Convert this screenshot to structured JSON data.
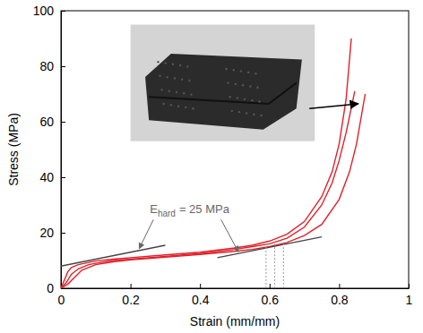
{
  "chart_data": {
    "type": "line",
    "x_label": "Strain (mm/mm)",
    "y_label": "Stress (MPa)",
    "xlim": [
      0,
      1
    ],
    "ylim": [
      0,
      100
    ],
    "xticks": [
      0,
      0.2,
      0.4,
      0.6,
      0.8,
      1
    ],
    "yticks": [
      0,
      20,
      40,
      60,
      80,
      100
    ],
    "grid": false,
    "series": [
      {
        "color": "#e0202a",
        "line_style": "solid",
        "x": [
          0,
          0.01,
          0.02,
          0.03,
          0.05,
          0.08,
          0.1,
          0.15,
          0.2,
          0.3,
          0.4,
          0.5,
          0.55,
          0.6,
          0.65,
          0.7,
          0.75,
          0.78,
          0.8,
          0.82,
          0.835
        ],
        "values": [
          0,
          3,
          6,
          7.5,
          8.5,
          9.3,
          9.8,
          10.5,
          11,
          12,
          13,
          14.5,
          15.5,
          17,
          19.5,
          24,
          33,
          42,
          52,
          68,
          90
        ]
      },
      {
        "color": "#e0202a",
        "line_style": "solid",
        "x": [
          0,
          0.015,
          0.03,
          0.05,
          0.08,
          0.1,
          0.15,
          0.2,
          0.3,
          0.4,
          0.5,
          0.55,
          0.6,
          0.65,
          0.7,
          0.75,
          0.78,
          0.8,
          0.82,
          0.845
        ],
        "values": [
          0,
          2,
          5,
          7,
          8.5,
          9,
          10,
          10.5,
          11.5,
          12.5,
          14,
          15,
          16,
          18,
          22,
          30,
          38,
          46,
          56,
          71
        ]
      },
      {
        "color": "#e0202a",
        "line_style": "solid",
        "x": [
          0,
          0.02,
          0.04,
          0.06,
          0.1,
          0.15,
          0.2,
          0.3,
          0.4,
          0.5,
          0.55,
          0.6,
          0.65,
          0.7,
          0.75,
          0.8,
          0.83,
          0.85,
          0.875
        ],
        "values": [
          0,
          1.5,
          4,
          6.5,
          8.5,
          9.5,
          10.2,
          11.2,
          12.2,
          13.3,
          14,
          15,
          16.5,
          19,
          23,
          32,
          42,
          52,
          70
        ]
      },
      {
        "color": "#444444",
        "line_style": "solid",
        "x": [
          0,
          0.3
        ],
        "values": [
          8,
          15.5
        ]
      },
      {
        "color": "#444444",
        "line_style": "solid",
        "x": [
          0.45,
          0.75
        ],
        "values": [
          11,
          18.5
        ]
      },
      {
        "color": "#999999",
        "line_style": "dotted",
        "x": [
          0.59,
          0.59
        ],
        "values": [
          0,
          16
        ]
      },
      {
        "color": "#999999",
        "line_style": "dotted",
        "x": [
          0.615,
          0.615
        ],
        "values": [
          0,
          16
        ]
      },
      {
        "color": "#999999",
        "line_style": "dotted",
        "x": [
          0.64,
          0.64
        ],
        "values": [
          0,
          16
        ]
      }
    ],
    "annotations": [
      {
        "text": "E",
        "subscript": "hard",
        "text_after": "= 25 MPa",
        "x": 0.37,
        "y": 27,
        "color": "#666666"
      }
    ]
  }
}
